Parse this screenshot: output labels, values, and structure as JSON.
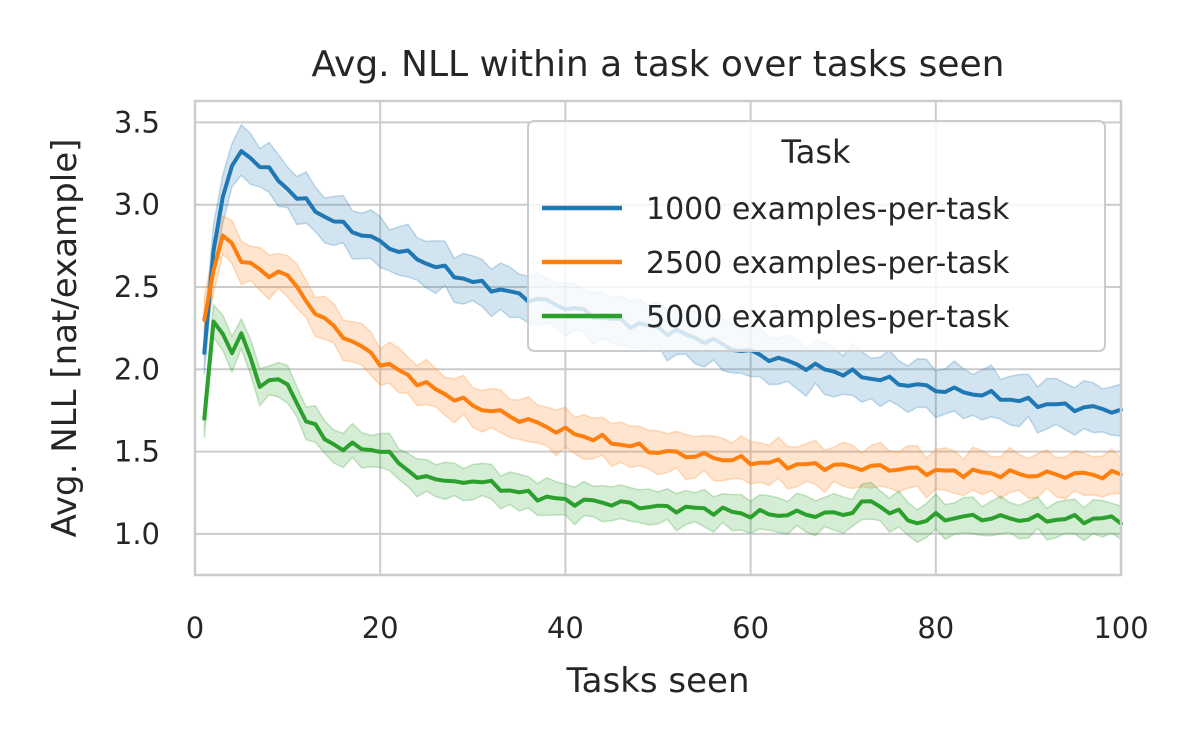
{
  "chart_data": {
    "type": "line",
    "title": "Avg. NLL within a task over tasks seen",
    "xlabel": "Tasks seen",
    "ylabel": "Avg. NLL [nat/example]",
    "xlim": [
      0,
      100
    ],
    "ylim": [
      0.75,
      3.63
    ],
    "xticks": [
      0,
      20,
      40,
      60,
      80,
      100
    ],
    "yticks": [
      1.0,
      1.5,
      2.0,
      2.5,
      3.0,
      3.5
    ],
    "xtick_labels": [
      "0",
      "20",
      "40",
      "60",
      "80",
      "100"
    ],
    "ytick_labels": [
      "1.0",
      "1.5",
      "2.0",
      "2.5",
      "3.0",
      "3.5"
    ],
    "grid": true,
    "legend": {
      "title": "Task",
      "placement": "top-right"
    },
    "series": [
      {
        "name": "1000 examples-per-task",
        "color": "#1f77b4",
        "band_halfwidth": 0.14,
        "anchors": [
          [
            1,
            2.1
          ],
          [
            2,
            2.72
          ],
          [
            3,
            3.07
          ],
          [
            4,
            3.22
          ],
          [
            5,
            3.32
          ],
          [
            7,
            3.25
          ],
          [
            9,
            3.15
          ],
          [
            11,
            3.05
          ],
          [
            13,
            2.97
          ],
          [
            15,
            2.9
          ],
          [
            20,
            2.77
          ],
          [
            25,
            2.65
          ],
          [
            30,
            2.53
          ],
          [
            35,
            2.45
          ],
          [
            40,
            2.38
          ],
          [
            45,
            2.3
          ],
          [
            50,
            2.25
          ],
          [
            55,
            2.18
          ],
          [
            60,
            2.1
          ],
          [
            65,
            2.03
          ],
          [
            70,
            1.98
          ],
          [
            75,
            1.93
          ],
          [
            80,
            1.88
          ],
          [
            85,
            1.85
          ],
          [
            90,
            1.8
          ],
          [
            95,
            1.77
          ],
          [
            100,
            1.75
          ]
        ]
      },
      {
        "name": "2500 examples-per-task",
        "color": "#ff7f0e",
        "band_halfwidth": 0.12,
        "anchors": [
          [
            1,
            2.3
          ],
          [
            2,
            2.6
          ],
          [
            3,
            2.81
          ],
          [
            5,
            2.68
          ],
          [
            7,
            2.6
          ],
          [
            8,
            2.55
          ],
          [
            9,
            2.62
          ],
          [
            10,
            2.56
          ],
          [
            13,
            2.35
          ],
          [
            15,
            2.25
          ],
          [
            20,
            2.05
          ],
          [
            25,
            1.9
          ],
          [
            30,
            1.78
          ],
          [
            35,
            1.7
          ],
          [
            40,
            1.62
          ],
          [
            45,
            1.56
          ],
          [
            50,
            1.5
          ],
          [
            55,
            1.47
          ],
          [
            60,
            1.44
          ],
          [
            65,
            1.42
          ],
          [
            70,
            1.41
          ],
          [
            75,
            1.4
          ],
          [
            80,
            1.38
          ],
          [
            85,
            1.37
          ],
          [
            90,
            1.36
          ],
          [
            95,
            1.36
          ],
          [
            100,
            1.36
          ]
        ]
      },
      {
        "name": "5000 examples-per-task",
        "color": "#2ca02c",
        "band_halfwidth": 0.1,
        "anchors": [
          [
            1,
            1.7
          ],
          [
            2,
            2.29
          ],
          [
            3,
            2.22
          ],
          [
            4,
            2.11
          ],
          [
            5,
            2.22
          ],
          [
            6,
            2.05
          ],
          [
            7,
            1.9
          ],
          [
            8,
            1.95
          ],
          [
            10,
            1.9
          ],
          [
            12,
            1.7
          ],
          [
            14,
            1.58
          ],
          [
            16,
            1.52
          ],
          [
            18,
            1.53
          ],
          [
            20,
            1.5
          ],
          [
            22,
            1.45
          ],
          [
            24,
            1.33
          ],
          [
            26,
            1.35
          ],
          [
            28,
            1.3
          ],
          [
            30,
            1.33
          ],
          [
            35,
            1.25
          ],
          [
            40,
            1.2
          ],
          [
            45,
            1.19
          ],
          [
            50,
            1.16
          ],
          [
            55,
            1.15
          ],
          [
            60,
            1.12
          ],
          [
            65,
            1.12
          ],
          [
            70,
            1.12
          ],
          [
            73,
            1.2
          ],
          [
            75,
            1.14
          ],
          [
            78,
            1.07
          ],
          [
            80,
            1.1
          ],
          [
            85,
            1.1
          ],
          [
            90,
            1.09
          ],
          [
            95,
            1.09
          ],
          [
            100,
            1.09
          ]
        ]
      }
    ]
  }
}
